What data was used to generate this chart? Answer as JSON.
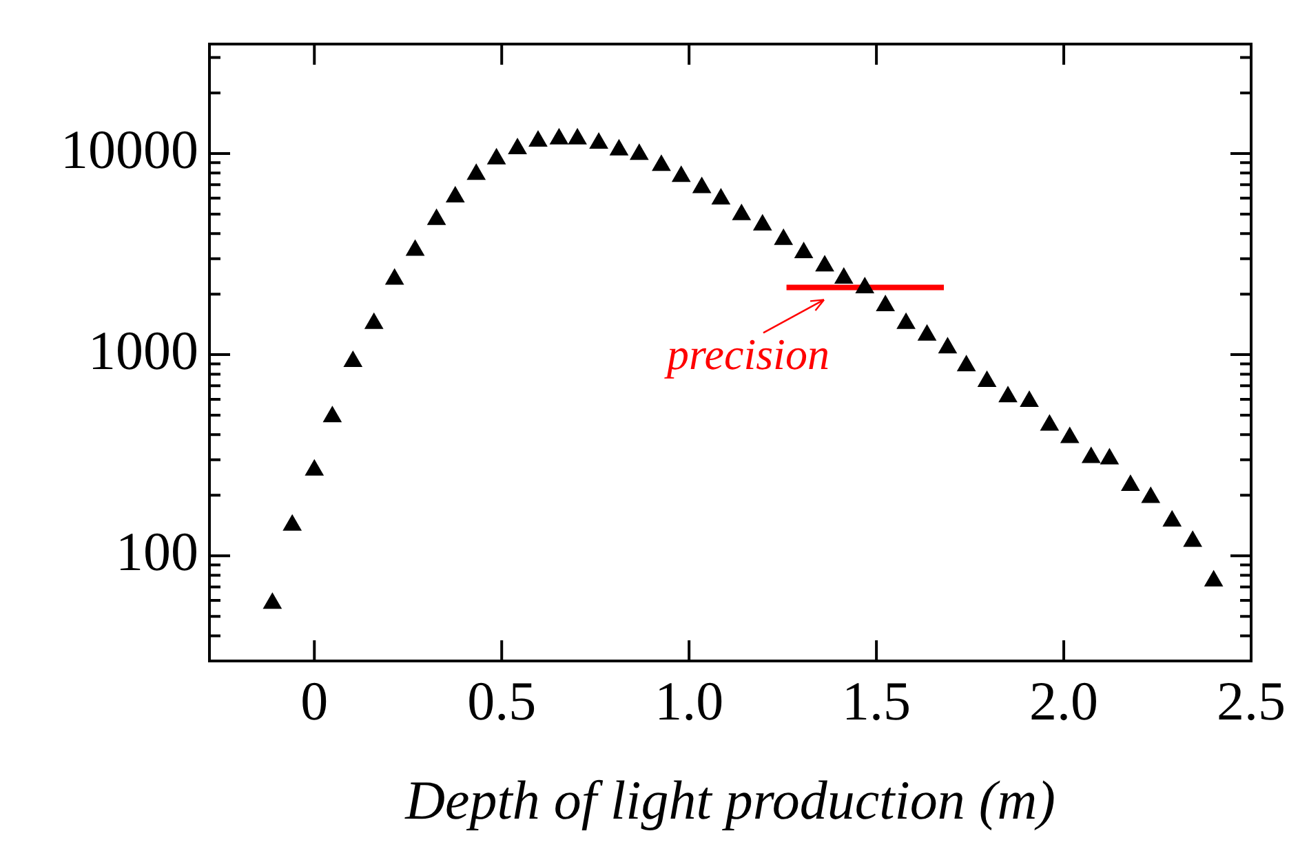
{
  "chart_data": {
    "type": "scatter",
    "xlabel": "Depth of light production (m)",
    "marker": "triangle",
    "log": "y",
    "grid": false,
    "legend": false,
    "xlim": [
      -0.28,
      2.5
    ],
    "xticks": [
      0,
      0.5,
      {
        "value": 1,
        "label": "1.0"
      },
      1.5,
      {
        "value": 2,
        "label": "2.0"
      },
      2.5
    ],
    "ylim": [
      30,
      35000
    ],
    "yticks": [
      {
        "value": 40,
        "label": null
      },
      {
        "value": 50,
        "label": null
      },
      {
        "value": 60,
        "label": null
      },
      {
        "value": 70,
        "label": null
      },
      {
        "value": 80,
        "label": null
      },
      {
        "value": 90,
        "label": null
      },
      100,
      {
        "value": 200,
        "label": null
      },
      {
        "value": 300,
        "label": null
      },
      {
        "value": 400,
        "label": null
      },
      {
        "value": 500,
        "label": null
      },
      {
        "value": 600,
        "label": null
      },
      {
        "value": 700,
        "label": null
      },
      {
        "value": 800,
        "label": null
      },
      {
        "value": 900,
        "label": null
      },
      1000,
      {
        "value": 2000,
        "label": null
      },
      {
        "value": 3000,
        "label": null
      },
      {
        "value": 4000,
        "label": null
      },
      {
        "value": 5000,
        "label": null
      },
      {
        "value": 6000,
        "label": null
      },
      {
        "value": 7000,
        "label": null
      },
      {
        "value": 8000,
        "label": null
      },
      {
        "value": 9000,
        "label": null
      },
      10000,
      {
        "value": 20000,
        "label": null
      },
      {
        "value": 30000,
        "label": null
      }
    ],
    "annotations": [
      {
        "text": "precision",
        "x": 1.36,
        "y": 2160
      }
    ],
    "series": [
      {
        "color": "#000000",
        "x": [
          -0.112,
          -0.059,
          0.0,
          0.048,
          0.103,
          0.159,
          0.214,
          0.269,
          0.326,
          0.376,
          0.432,
          0.486,
          0.542,
          0.597,
          0.653,
          0.702,
          0.759,
          0.813,
          0.867,
          0.926,
          0.979,
          1.034,
          1.085,
          1.14,
          1.196,
          1.252,
          1.306,
          1.362,
          1.413,
          1.469,
          1.524,
          1.579,
          1.635,
          1.69,
          1.74,
          1.795,
          1.851,
          1.908,
          1.962,
          2.016,
          2.073,
          2.122,
          2.178,
          2.232,
          2.289,
          2.344,
          2.4
        ],
        "values": [
          58,
          142,
          267,
          491,
          925,
          1430,
          2370,
          3300,
          4700,
          6080,
          7870,
          9400,
          10570,
          11520,
          11820,
          11820,
          11240,
          10420,
          9900,
          8720,
          7690,
          6770,
          5940,
          4970,
          4410,
          3740,
          3210,
          2760,
          2400,
          2150,
          1750,
          1430,
          1250,
          1080,
          880,
          736,
          617,
          586,
          446,
          387,
          308,
          303,
          224,
          195,
          149,
          118,
          75
        ]
      },
      {
        "type": "line",
        "marker": "none",
        "color": "#ff0000",
        "x": [
          1.26,
          1.68
        ],
        "values": [
          2160,
          2160
        ]
      }
    ]
  }
}
